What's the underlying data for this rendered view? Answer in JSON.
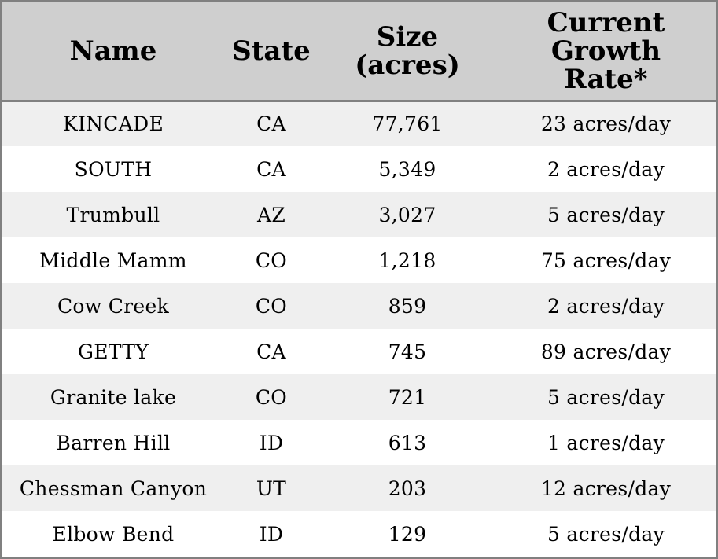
{
  "table": {
    "headers": {
      "name": [
        "Name"
      ],
      "state": [
        "State"
      ],
      "size": [
        "Size",
        "(acres)"
      ],
      "rate": [
        "Current",
        "Growth",
        "Rate*"
      ]
    },
    "rows": [
      {
        "name": "KINCADE",
        "state": "CA",
        "size": "77,761",
        "rate": "23 acres/day"
      },
      {
        "name": "SOUTH",
        "state": "CA",
        "size": "5,349",
        "rate": "2 acres/day"
      },
      {
        "name": "Trumbull",
        "state": "AZ",
        "size": "3,027",
        "rate": "5 acres/day"
      },
      {
        "name": "Middle Mamm",
        "state": "CO",
        "size": "1,218",
        "rate": "75 acres/day"
      },
      {
        "name": "Cow Creek",
        "state": "CO",
        "size": "859",
        "rate": "2 acres/day"
      },
      {
        "name": "GETTY",
        "state": "CA",
        "size": "745",
        "rate": "89 acres/day"
      },
      {
        "name": "Granite lake",
        "state": "CO",
        "size": "721",
        "rate": "5 acres/day"
      },
      {
        "name": "Barren Hill",
        "state": "ID",
        "size": "613",
        "rate": "1 acres/day"
      },
      {
        "name": "Chessman Canyon",
        "state": "UT",
        "size": "203",
        "rate": "12 acres/day"
      },
      {
        "name": "Elbow Bend",
        "state": "ID",
        "size": "129",
        "rate": "5 acres/day"
      }
    ]
  },
  "colors": {
    "header_bg": "#cfcfcf",
    "stripe_bg": "#efefef",
    "border": "#808080"
  }
}
